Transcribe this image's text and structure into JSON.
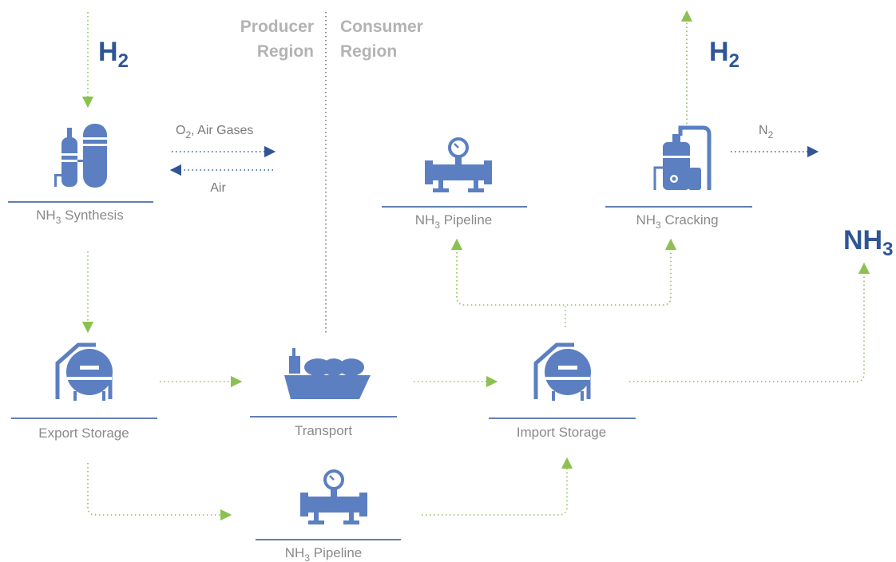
{
  "regions": {
    "producer": [
      "Producer",
      "Region"
    ],
    "consumer": [
      "Consumer",
      "Region"
    ]
  },
  "nodes": {
    "synthesis": {
      "text": "NH",
      "sub": "3",
      "rest": " Synthesis"
    },
    "export_storage": {
      "text": "Export Storage"
    },
    "transport": {
      "text": "Transport"
    },
    "import_storage": {
      "text": "Import Storage"
    },
    "pipeline_bottom": {
      "text": "NH",
      "sub": "3",
      "rest": " Pipeline"
    },
    "pipeline_top": {
      "text": "NH",
      "sub": "3",
      "rest": " Pipeline"
    },
    "cracking": {
      "text": "NH",
      "sub": "3",
      "rest": " Cracking"
    }
  },
  "flows": {
    "hydrogen_in": {
      "text": "H",
      "sub": "2"
    },
    "hydrogen_out": {
      "text": "H",
      "sub": "2"
    },
    "ammonia_out": {
      "text": "NH",
      "sub": "3"
    },
    "oxygen_air_gases": {
      "text": "O",
      "sub": "2",
      "rest": ", Air Gases"
    },
    "air": {
      "text": "Air"
    },
    "nitrogen": {
      "text": "N",
      "sub": "2"
    }
  }
}
